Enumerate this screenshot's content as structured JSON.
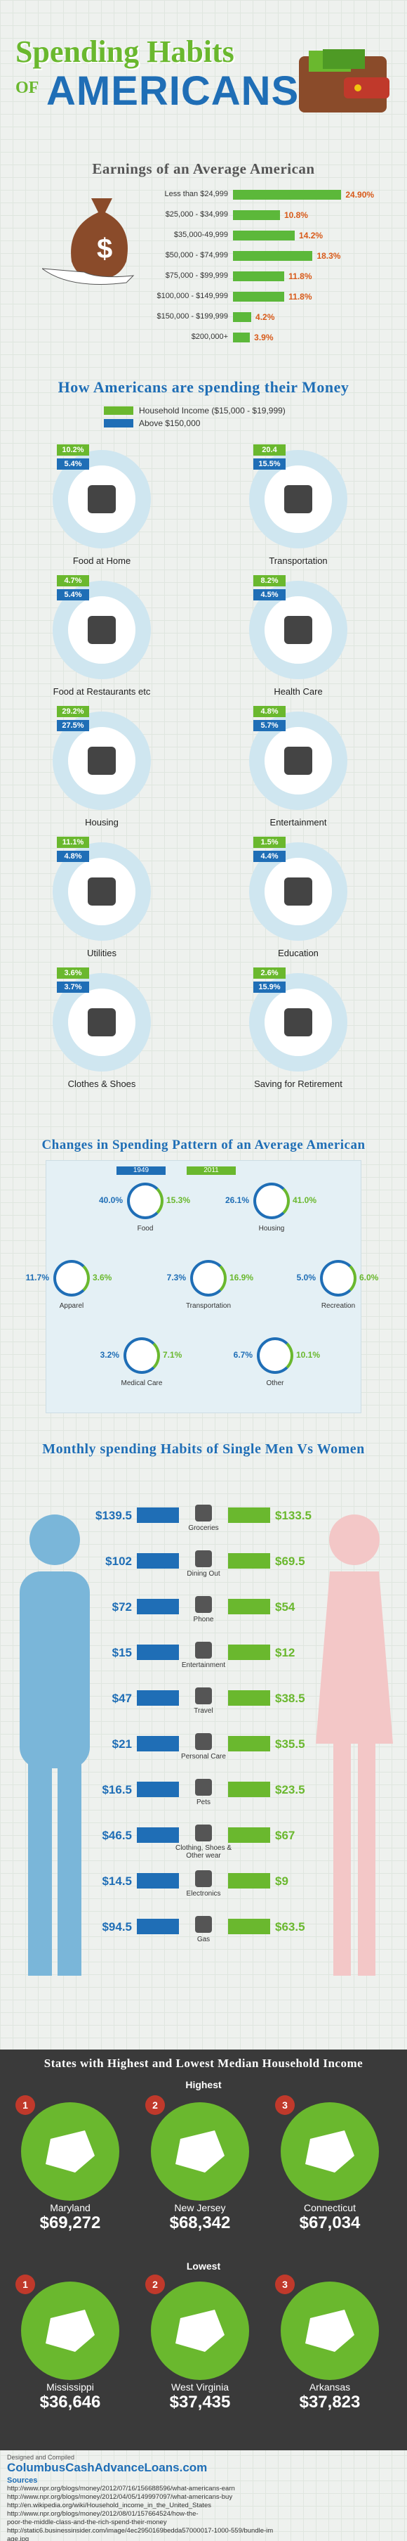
{
  "header": {
    "title_line1": "Spending Habits",
    "title_of": "OF",
    "title_line2": "AMERICANS"
  },
  "earnings": {
    "title": "Earnings of an Average American",
    "rows": [
      {
        "label": "Less than $24,999",
        "value": "24.90%",
        "pct": 24.9
      },
      {
        "label": "$25,000 - $34,999",
        "value": "10.8%",
        "pct": 10.8
      },
      {
        "label": "$35,000-49,999",
        "value": "14.2%",
        "pct": 14.2
      },
      {
        "label": "$50,000 - $74,999",
        "value": "18.3%",
        "pct": 18.3
      },
      {
        "label": "$75,000 - $99,999",
        "value": "11.8%",
        "pct": 11.8
      },
      {
        "label": "$100,000 - $149,999",
        "value": "11.8%",
        "pct": 11.8
      },
      {
        "label": "$150,000 - $199,999",
        "value": "4.2%",
        "pct": 4.2
      },
      {
        "label": "$200,000+",
        "value": "3.9%",
        "pct": 3.9
      }
    ]
  },
  "spending": {
    "title": "How Americans are spending their Money",
    "legend": [
      {
        "label": "Household Income ($15,000 - $19,999)",
        "color": "#6ab82e"
      },
      {
        "label": "Above $150,000",
        "color": "#1f6eb6"
      }
    ],
    "items": [
      {
        "label": "Food at Home",
        "a": "10.2%",
        "b": "5.4%",
        "icon": "grocery-icon"
      },
      {
        "label": "Transportation",
        "a": "20.4",
        "b": "15.5%",
        "icon": "car-icon"
      },
      {
        "label": "Food at Restaurants etc",
        "a": "4.7%",
        "b": "5.4%",
        "icon": "plate-icon"
      },
      {
        "label": "Health Care",
        "a": "8.2%",
        "b": "4.5%",
        "icon": "syringe-icon"
      },
      {
        "label": "Housing",
        "a": "29.2%",
        "b": "27.5%",
        "icon": "house-icon"
      },
      {
        "label": "Entertainment",
        "a": "4.8%",
        "b": "5.7%",
        "icon": "ticket-icon"
      },
      {
        "label": "Utilities",
        "a": "11.1%",
        "b": "4.8%",
        "icon": "tools-icon"
      },
      {
        "label": "Education",
        "a": "1.5%",
        "b": "4.4%",
        "icon": "book-icon"
      },
      {
        "label": "Clothes & Shoes",
        "a": "3.6%",
        "b": "3.7%",
        "icon": "clothes-icon"
      },
      {
        "label": "Saving for Retirement",
        "a": "2.6%",
        "b": "15.9%",
        "icon": "piggy-icon"
      }
    ]
  },
  "changes": {
    "title": "Changes in Spending Pattern of an Average American",
    "legend": [
      {
        "label": "1949",
        "color": "#1f6eb6"
      },
      {
        "label": "2011",
        "color": "#6ab82e"
      }
    ],
    "items": [
      {
        "label": "Food",
        "a": "40.0%",
        "b": "15.3%"
      },
      {
        "label": "Housing",
        "a": "26.1%",
        "b": "41.0%"
      },
      {
        "label": "Apparel",
        "a": "11.7%",
        "b": "3.6%"
      },
      {
        "label": "Transportation",
        "a": "7.3%",
        "b": "16.9%"
      },
      {
        "label": "Recreation",
        "a": "5.0%",
        "b": "6.0%"
      },
      {
        "label": "Medical Care",
        "a": "3.2%",
        "b": "7.1%"
      },
      {
        "label": "Other",
        "a": "6.7%",
        "b": "10.1%"
      }
    ]
  },
  "monthly": {
    "title": "Monthly spending Habits of Single Men Vs Women",
    "rows": [
      {
        "label": "Groceries",
        "men": "$139.5",
        "women": "$133.5"
      },
      {
        "label": "Dining Out",
        "men": "$102",
        "women": "$69.5"
      },
      {
        "label": "Phone",
        "men": "$72",
        "women": "$54"
      },
      {
        "label": "Entertainment",
        "men": "$15",
        "women": "$12"
      },
      {
        "label": "Travel",
        "men": "$47",
        "women": "$38.5"
      },
      {
        "label": "Personal Care",
        "men": "$21",
        "women": "$35.5"
      },
      {
        "label": "Pets",
        "men": "$16.5",
        "women": "$23.5"
      },
      {
        "label": "Clothing, Shoes & Other wear",
        "men": "$46.5",
        "women": "$67"
      },
      {
        "label": "Electronics",
        "men": "$14.5",
        "women": "$9"
      },
      {
        "label": "Gas",
        "men": "$94.5",
        "women": "$63.5"
      }
    ]
  },
  "states": {
    "title": "States with Highest and Lowest Median Household Income",
    "highest_label": "Highest",
    "lowest_label": "Lowest",
    "highest": [
      {
        "rank": "1",
        "name": "Maryland",
        "value": "$69,272"
      },
      {
        "rank": "2",
        "name": "New Jersey",
        "value": "$68,342"
      },
      {
        "rank": "3",
        "name": "Connecticut",
        "value": "$67,034"
      }
    ],
    "lowest": [
      {
        "rank": "1",
        "name": "Mississippi",
        "value": "$36,646"
      },
      {
        "rank": "2",
        "name": "West Virginia",
        "value": "$37,435"
      },
      {
        "rank": "3",
        "name": "Arkansas",
        "value": "$37,823"
      }
    ]
  },
  "footer": {
    "designed": "Designed and Compiled",
    "site": "ColumbusCashAdvanceLoans.com",
    "sources_label": "Sources",
    "sources": [
      "http://www.npr.org/blogs/money/2012/07/16/156688596/what-americans-earn",
      "http://www.npr.org/blogs/money/2012/04/05/149997097/what-americans-buy",
      "http://en.wikipedia.org/wiki/Household_income_in_the_United_States",
      "http://www.npr.org/blogs/money/2012/08/01/157664524/how-the-",
      "poor-the-middle-class-and-the-rich-spend-their-money",
      "http://static6.businessinsider.com/image/4ec2950169bedda57000017-1000-559/bundle-im",
      "age.jpg"
    ]
  }
}
